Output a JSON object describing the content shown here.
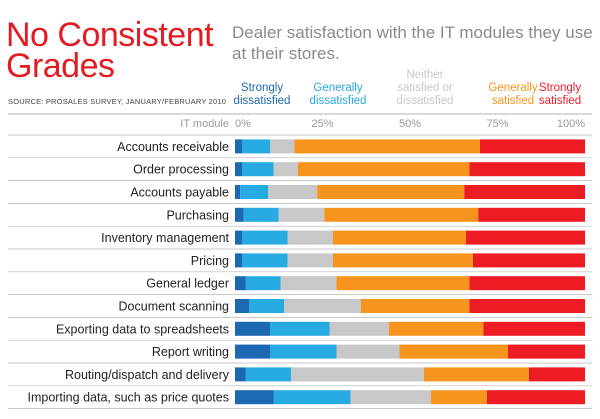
{
  "header": {
    "title_lines": [
      "No Consistent",
      "Grades"
    ],
    "source": "SOURCE: PROSALES SURVEY, JANUARY/FEBRUARY 2010",
    "subtitle": "Dealer satisfaction with the IT modules they use at their stores."
  },
  "chart_data": {
    "type": "bar",
    "orientation": "horizontal",
    "stacked": true,
    "title": "Dealer satisfaction with the IT modules they use at their stores.",
    "category_label": "IT module",
    "xlim": [
      0,
      100
    ],
    "ticks": [
      "0%",
      "25%",
      "50%",
      "75%",
      "100%"
    ],
    "tick_values": [
      0,
      25,
      50,
      75,
      100
    ],
    "grid": false,
    "legend_position": "top",
    "categories": [
      "Accounts receivable",
      "Order processing",
      "Accounts payable",
      "Purchasing",
      "Inventory management",
      "Pricing",
      "General ledger",
      "Document scanning",
      "Exporting data to spreadsheets",
      "Report writing",
      "Routing/dispatch and delivery",
      "Importing data, such as price quotes"
    ],
    "series": [
      {
        "name_lines": [
          "Strongly",
          "dissatisfied"
        ],
        "color": "#1c68b3",
        "values": [
          2,
          2,
          1.5,
          2.5,
          2,
          2,
          3,
          4,
          10,
          10,
          3,
          11
        ]
      },
      {
        "name_lines": [
          "Generally",
          "dissatisfied"
        ],
        "color": "#27a9e1",
        "values": [
          8,
          9,
          8,
          10,
          13,
          13,
          10,
          10,
          17,
          19,
          13,
          22
        ]
      },
      {
        "name_lines": [
          "Neither",
          "satisfied or",
          "dissatisfied"
        ],
        "color": "#c8c8c8",
        "values": [
          7,
          7,
          14,
          13,
          13,
          13,
          16,
          22,
          17,
          18,
          38,
          23
        ]
      },
      {
        "name_lines": [
          "Generally",
          "satisfied"
        ],
        "color": "#f7941d",
        "values": [
          53,
          49,
          42,
          44,
          38,
          40,
          38,
          31,
          27,
          31,
          30,
          16
        ]
      },
      {
        "name_lines": [
          "Strongly",
          "satisfied"
        ],
        "color": "#ed1c24",
        "values": [
          30,
          33,
          34.5,
          30.5,
          34,
          32,
          33,
          33,
          29,
          22,
          16,
          28
        ]
      }
    ]
  }
}
